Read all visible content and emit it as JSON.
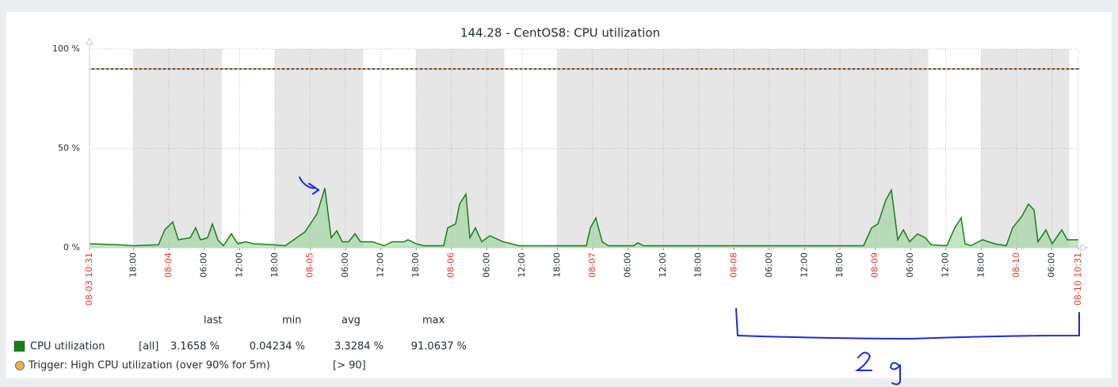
{
  "chart_data": {
    "type": "area",
    "title": "144.28 - CentOS8: CPU utilization",
    "xlim": [
      "08-03 10:31",
      "08-10 10:31"
    ],
    "ylim": [
      0,
      100
    ],
    "yticks": [
      {
        "value": 0,
        "label": "0 %"
      },
      {
        "value": 50,
        "label": "50 %"
      },
      {
        "value": 100,
        "label": "100 %"
      }
    ],
    "xticks": [
      "08-03 10:31",
      {
        "value": "08-03 18:00",
        "label": "18:00"
      },
      {
        "value": "08-04 00:00",
        "label": "08-04"
      },
      {
        "value": "08-04 06:00",
        "label": "06:00"
      },
      {
        "value": "08-04 12:00",
        "label": "12:00"
      },
      {
        "value": "08-04 18:00",
        "label": "18:00"
      },
      {
        "value": "08-05 00:00",
        "label": "08-05"
      },
      {
        "value": "08-05 06:00",
        "label": "06:00"
      },
      {
        "value": "08-05 12:00",
        "label": "12:00"
      },
      {
        "value": "08-05 18:00",
        "label": "18:00"
      },
      {
        "value": "08-06 00:00",
        "label": "08-06"
      },
      {
        "value": "08-06 06:00",
        "label": "06:00"
      },
      {
        "value": "08-06 12:00",
        "label": "12:00"
      },
      {
        "value": "08-06 18:00",
        "label": "18:00"
      },
      {
        "value": "08-07 00:00",
        "label": "08-07"
      },
      {
        "value": "08-07 06:00",
        "label": "06:00"
      },
      {
        "value": "08-07 12:00",
        "label": "12:00"
      },
      {
        "value": "08-07 18:00",
        "label": "18:00"
      },
      {
        "value": "08-08 00:00",
        "label": "08-08"
      },
      {
        "value": "08-08 06:00",
        "label": "06:00"
      },
      {
        "value": "08-08 12:00",
        "label": "12:00"
      },
      {
        "value": "08-08 18:00",
        "label": "18:00"
      },
      {
        "value": "08-09 00:00",
        "label": "08-09"
      },
      {
        "value": "08-09 06:00",
        "label": "06:00"
      },
      {
        "value": "08-09 12:00",
        "label": "12:00"
      },
      {
        "value": "08-09 18:00",
        "label": "18:00"
      },
      {
        "value": "08-10 00:00",
        "label": "08-10"
      },
      {
        "value": "08-10 06:00",
        "label": "06:00"
      },
      "08-10 10:31"
    ],
    "grid": true,
    "shaded": [
      [
        "08-03 18:00",
        "08-04 09:00"
      ],
      [
        "08-04 18:00",
        "08-05 09:00"
      ],
      [
        "08-05 18:00",
        "08-06 09:00"
      ],
      [
        "08-06 18:00",
        "08-09 09:00"
      ],
      [
        "08-09 18:00",
        "08-10 09:00"
      ]
    ],
    "shade_color": "#e6e6e6",
    "x": [
      "08-03 10:31",
      "08-03 15:30",
      "08-03 18:00",
      "08-03 22:14",
      "08-03 23:18",
      "08-04 00:39",
      "08-04 01:36",
      "08-04 03:37",
      "08-04 04:33",
      "08-04 05:22",
      "08-04 06:34",
      "08-04 07:23",
      "08-04 08:19",
      "08-04 09:16",
      "08-04 10:37",
      "08-04 11:41",
      "08-04 13:02",
      "08-04 14:23",
      "08-04 17:45",
      "08-04 19:46",
      "08-04 23:08",
      "08-05 01:09",
      "08-05 02:30",
      "08-05 03:34",
      "08-05 04:31",
      "08-05 05:28",
      "08-05 06:32",
      "08-05 07:37",
      "08-05 08:33",
      "08-05 10:34",
      "08-05 12:36",
      "08-05 13:56",
      "08-05 15:58",
      "08-05 16:38",
      "08-05 17:59",
      "08-05 19:19",
      "08-05 22:41",
      "08-05 23:22",
      "08-06 00:43",
      "08-06 01:23",
      "08-06 02:28",
      "08-06 03:08",
      "08-06 04:04",
      "08-06 05:09",
      "08-06 06:30",
      "08-06 08:47",
      "08-06 11:29",
      "08-06 17:32",
      "08-06 22:55",
      "08-06 23:36",
      "08-07 00:32",
      "08-07 01:37",
      "08-07 02:41",
      "08-07 07:00",
      "08-07 07:40",
      "08-07 08:37",
      "08-07 20:28",
      "08-08 09:55",
      "08-08 22:02",
      "08-08 23:23",
      "08-09 00:28",
      "08-09 01:48",
      "08-09 02:45",
      "08-09 03:50",
      "08-09 04:46",
      "08-09 05:51",
      "08-09 07:11",
      "08-09 08:32",
      "08-09 09:29",
      "08-09 12:10",
      "08-09 13:31",
      "08-09 14:36",
      "08-09 15:16",
      "08-09 16:13",
      "08-09 18:14",
      "08-09 20:15",
      "08-09 22:16",
      "08-09 23:21",
      "08-10 00:57",
      "08-10 02:02",
      "08-10 02:59",
      "08-10 03:39",
      "08-10 05:00",
      "08-10 06:04",
      "08-10 07:42",
      "08-10 08:38",
      "08-10 10:31"
    ],
    "series": [
      {
        "name": "CPU utilization",
        "color": "#1b7e1b",
        "fill": "#8fcf8f",
        "function": "[all]",
        "values": [
          2,
          1.5,
          1,
          1.5,
          9,
          13,
          4,
          5,
          10,
          4,
          5,
          12,
          4,
          1,
          7,
          2,
          3,
          2,
          1.5,
          1,
          8,
          17,
          30,
          5,
          8.5,
          3,
          3,
          7,
          3,
          3,
          1,
          3,
          3,
          4,
          2,
          1,
          1,
          10,
          12,
          22,
          27,
          5,
          10,
          3,
          6,
          3,
          1,
          1,
          1,
          10,
          15,
          3,
          1,
          1,
          2.5,
          1,
          1,
          1,
          1,
          10,
          12,
          24,
          29,
          4,
          9,
          3,
          7,
          5,
          1.5,
          1,
          10,
          15,
          2,
          1,
          4,
          2,
          1,
          10,
          16,
          22,
          19,
          3,
          9,
          2,
          9,
          4,
          4
        ],
        "stats": [
          3.1658,
          0.04234,
          3.3284,
          91.0637
        ],
        "stats_labels": [
          "3.1658 %",
          "0.04234 %",
          "3.3284 %",
          "91.0637 %"
        ]
      }
    ],
    "legend_headers": [
      "last",
      "min",
      "avg",
      "max"
    ],
    "trigger": {
      "label": "Trigger: High CPU utilization (over 90% for 5m)",
      "value": 90,
      "value_label": "[> 90]",
      "color": "#f0b050",
      "color2": "#3d4a8c"
    }
  }
}
